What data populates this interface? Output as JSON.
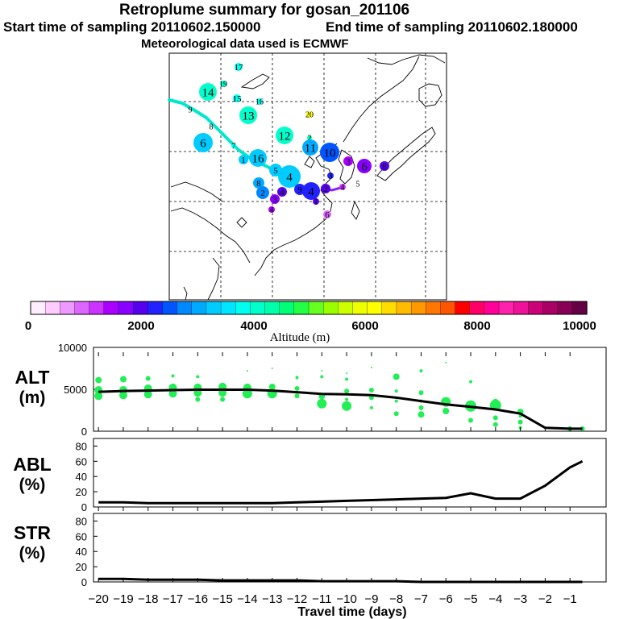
{
  "header": {
    "title": "Retroplume summary for gosan_201106",
    "start_label": "Start time of sampling 20110602.150000",
    "end_label": "End time of sampling 20110602.180000",
    "met_label": "Meteorological data used is ECMWF"
  },
  "map": {
    "trajectory_labels": [
      "17",
      "14",
      "19",
      "15",
      "16",
      "9",
      "20",
      "13",
      "8",
      "12",
      "6",
      "7",
      "2",
      "11",
      "10",
      "1",
      "16",
      "5",
      "3",
      "4",
      "8",
      "3",
      "6",
      "2",
      "4",
      "3",
      "9",
      "8",
      "4",
      "4",
      "2",
      "1",
      "4",
      "6",
      "5"
    ]
  },
  "colorbar": {
    "ticks": [
      "0",
      "2000",
      "4000",
      "6000",
      "8000",
      "10000"
    ],
    "label": "Altitude  (m)",
    "colors": [
      "#ffeeff",
      "#ffccff",
      "#ee99ff",
      "#dd66ff",
      "#cc33ff",
      "#aa00ff",
      "#8800ff",
      "#5500ee",
      "#2222ff",
      "#0055ff",
      "#0088ff",
      "#00aaff",
      "#00ccff",
      "#00e5ff",
      "#00ffee",
      "#00ffcc",
      "#00ffaa",
      "#00ff77",
      "#22ff44",
      "#66ff22",
      "#99ff00",
      "#ccff00",
      "#eeff00",
      "#ffff00",
      "#ffdd00",
      "#ffbb00",
      "#ff9900",
      "#ff7700",
      "#ff5500",
      "#ff0000",
      "#ff0066",
      "#ff0099",
      "#ff22aa",
      "#ee1199",
      "#cc0077",
      "#aa0066",
      "#880055",
      "#660044"
    ]
  },
  "chart_data": [
    {
      "type": "line",
      "panel_label": "ALT",
      "unit_label": "(m)",
      "ylim": [
        0,
        10000
      ],
      "y_ticks": [
        "10000",
        "5000",
        "0"
      ],
      "x": [
        -20,
        -19,
        -18,
        -17,
        -16,
        -15,
        -14,
        -13,
        -12,
        -11,
        -10,
        -9,
        -8,
        -7,
        -6,
        -5,
        -4,
        -3,
        -2,
        -1,
        -0.5
      ],
      "values": [
        4700,
        4800,
        4850,
        4900,
        4950,
        4950,
        4950,
        4850,
        4650,
        4450,
        4400,
        4300,
        4000,
        3600,
        3200,
        2900,
        2600,
        2100,
        400,
        300,
        300
      ],
      "scatter_points": [
        {
          "x": -20,
          "y": 6100,
          "s": 4
        },
        {
          "x": -20,
          "y": 4900,
          "s": 5
        },
        {
          "x": -20,
          "y": 4200,
          "s": 5
        },
        {
          "x": -19,
          "y": 6200,
          "s": 4
        },
        {
          "x": -19,
          "y": 4900,
          "s": 5
        },
        {
          "x": -19,
          "y": 4300,
          "s": 5
        },
        {
          "x": -18,
          "y": 6300,
          "s": 3
        },
        {
          "x": -18,
          "y": 5100,
          "s": 5
        },
        {
          "x": -18,
          "y": 4400,
          "s": 5
        },
        {
          "x": -17,
          "y": 6600,
          "s": 2
        },
        {
          "x": -17,
          "y": 5200,
          "s": 5
        },
        {
          "x": -17,
          "y": 4500,
          "s": 5
        },
        {
          "x": -16,
          "y": 6500,
          "s": 2
        },
        {
          "x": -16,
          "y": 5200,
          "s": 5
        },
        {
          "x": -16,
          "y": 4600,
          "s": 5
        },
        {
          "x": -16,
          "y": 3800,
          "s": 3
        },
        {
          "x": -15,
          "y": 5300,
          "s": 5
        },
        {
          "x": -15,
          "y": 4600,
          "s": 5
        },
        {
          "x": -15,
          "y": 3800,
          "s": 3
        },
        {
          "x": -14,
          "y": 7200,
          "s": 1
        },
        {
          "x": -14,
          "y": 5200,
          "s": 5
        },
        {
          "x": -14,
          "y": 4500,
          "s": 6
        },
        {
          "x": -13,
          "y": 7500,
          "s": 1
        },
        {
          "x": -13,
          "y": 5300,
          "s": 4
        },
        {
          "x": -13,
          "y": 4500,
          "s": 6
        },
        {
          "x": -12,
          "y": 6400,
          "s": 2
        },
        {
          "x": -12,
          "y": 5100,
          "s": 3
        },
        {
          "x": -12,
          "y": 4200,
          "s": 3
        },
        {
          "x": -11,
          "y": 7200,
          "s": 1
        },
        {
          "x": -11,
          "y": 6500,
          "s": 2
        },
        {
          "x": -11,
          "y": 4200,
          "s": 4
        },
        {
          "x": -11,
          "y": 3300,
          "s": 6
        },
        {
          "x": -10,
          "y": 6900,
          "s": 1
        },
        {
          "x": -10,
          "y": 6200,
          "s": 2
        },
        {
          "x": -10,
          "y": 4800,
          "s": 3
        },
        {
          "x": -10,
          "y": 3800,
          "s": 2
        },
        {
          "x": -10,
          "y": 3000,
          "s": 6
        },
        {
          "x": -9,
          "y": 7600,
          "s": 1
        },
        {
          "x": -9,
          "y": 4900,
          "s": 3
        },
        {
          "x": -9,
          "y": 4000,
          "s": 3
        },
        {
          "x": -9,
          "y": 2800,
          "s": 2
        },
        {
          "x": -8,
          "y": 6500,
          "s": 4
        },
        {
          "x": -8,
          "y": 4800,
          "s": 2
        },
        {
          "x": -8,
          "y": 3600,
          "s": 2
        },
        {
          "x": -8,
          "y": 2100,
          "s": 3
        },
        {
          "x": -7,
          "y": 7200,
          "s": 2
        },
        {
          "x": -7,
          "y": 4600,
          "s": 3
        },
        {
          "x": -7,
          "y": 3600,
          "s": 2
        },
        {
          "x": -7,
          "y": 2800,
          "s": 3
        },
        {
          "x": -7,
          "y": 2000,
          "s": 4
        },
        {
          "x": -6,
          "y": 8200,
          "s": 1
        },
        {
          "x": -6,
          "y": 3500,
          "s": 6
        },
        {
          "x": -6,
          "y": 2400,
          "s": 4
        },
        {
          "x": -5,
          "y": 5900,
          "s": 2
        },
        {
          "x": -5,
          "y": 3000,
          "s": 7
        },
        {
          "x": -5,
          "y": 2600,
          "s": 2
        },
        {
          "x": -5,
          "y": 1300,
          "s": 3
        },
        {
          "x": -4,
          "y": 3600,
          "s": 3
        },
        {
          "x": -4,
          "y": 3100,
          "s": 7
        },
        {
          "x": -4,
          "y": 1600,
          "s": 3
        },
        {
          "x": -4,
          "y": 800,
          "s": 3
        },
        {
          "x": -3,
          "y": 2300,
          "s": 4
        },
        {
          "x": -3,
          "y": 1800,
          "s": 2
        },
        {
          "x": -3,
          "y": 1100,
          "s": 3
        },
        {
          "x": -3,
          "y": 400,
          "s": 2
        },
        {
          "x": -1,
          "y": 300,
          "s": 3
        },
        {
          "x": -0.5,
          "y": 300,
          "s": 3
        }
      ]
    },
    {
      "type": "line",
      "panel_label": "ABL",
      "unit_label": "(%)",
      "ylim": [
        0,
        90
      ],
      "y_ticks": [
        "80",
        "60",
        "40",
        "20",
        "0"
      ],
      "x": [
        -20,
        -19,
        -18,
        -17,
        -16,
        -15,
        -14,
        -13,
        -12,
        -11,
        -10,
        -9,
        -8,
        -7,
        -6,
        -5,
        -4,
        -3,
        -2,
        -1,
        -0.5
      ],
      "values": [
        6,
        6,
        5,
        5,
        5,
        5,
        5,
        5,
        6,
        7,
        8,
        9,
        10,
        11,
        12,
        18,
        11,
        11,
        28,
        52,
        60
      ]
    },
    {
      "type": "line",
      "panel_label": "STR",
      "unit_label": "(%)",
      "ylim": [
        0,
        90
      ],
      "y_ticks": [
        "80",
        "60",
        "40",
        "20",
        "0"
      ],
      "x": [
        -20,
        -19,
        -18,
        -17,
        -16,
        -15,
        -14,
        -13,
        -12,
        -11,
        -10,
        -9,
        -8,
        -7,
        -6,
        -5,
        -4,
        -3,
        -2,
        -1,
        -0.5
      ],
      "values": [
        4,
        4,
        3,
        3,
        3,
        2,
        2,
        2,
        2,
        1,
        1,
        1,
        1,
        0,
        0,
        0,
        0,
        0,
        0,
        0,
        0
      ]
    }
  ],
  "x_axis": {
    "tick_labels": [
      "−20",
      "−19",
      "−18",
      "−17",
      "−16",
      "−15",
      "−14",
      "−13",
      "−12",
      "−11",
      "−10",
      "−9",
      "−8",
      "−7",
      "−6",
      "−5",
      "−4",
      "−3",
      "−2",
      "−1"
    ],
    "xlabel": "Travel time (days)"
  },
  "styles": {
    "scatter_color": "#22ee55",
    "line_color": "#000000",
    "trajectory_color": "#00e8cc"
  }
}
